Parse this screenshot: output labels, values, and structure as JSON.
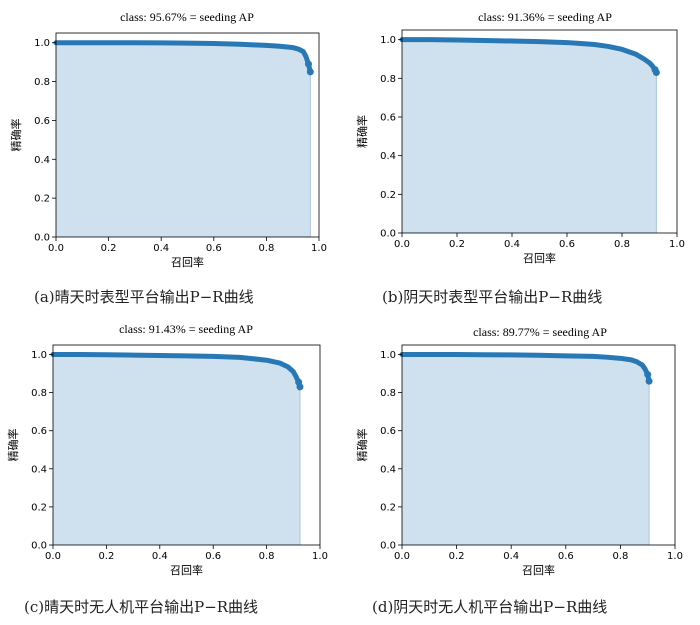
{
  "chart_data": [
    {
      "type": "area",
      "title": "class:  95.67% = seeding AP",
      "xlabel": "召回率",
      "ylabel": "精确率",
      "xlim": [
        0,
        1.0
      ],
      "ylim": [
        0,
        1.05
      ],
      "xticks": [
        "0.0",
        "0.2",
        "0.4",
        "0.6",
        "0.8",
        "1.0"
      ],
      "yticks": [
        "0.0",
        "0.2",
        "0.4",
        "0.6",
        "0.8",
        "1.0"
      ],
      "caption": "(a)晴天时表型平台输出P−R曲线",
      "series_color": "#2878b5",
      "fill_color": "#cfe0ee",
      "x": [
        0.0,
        0.1,
        0.2,
        0.3,
        0.4,
        0.5,
        0.6,
        0.7,
        0.75,
        0.8,
        0.85,
        0.88,
        0.9,
        0.92,
        0.94,
        0.95,
        0.96,
        0.967
      ],
      "y": [
        1.0,
        1.0,
        1.0,
        1.0,
        0.999,
        0.998,
        0.996,
        0.992,
        0.989,
        0.986,
        0.982,
        0.978,
        0.975,
        0.968,
        0.955,
        0.93,
        0.89,
        0.85
      ]
    },
    {
      "type": "area",
      "title": "class:  91.36% = seeding AP",
      "xlabel": "召回率",
      "ylabel": "精确率",
      "xlim": [
        0,
        1.0
      ],
      "ylim": [
        0,
        1.05
      ],
      "xticks": [
        "0.0",
        "0.2",
        "0.4",
        "0.6",
        "0.8",
        "1.0"
      ],
      "yticks": [
        "0.0",
        "0.2",
        "0.4",
        "0.6",
        "0.8",
        "1.0"
      ],
      "caption": "(b)阴天时表型平台输出P−R曲线",
      "series_color": "#2878b5",
      "fill_color": "#cfe0ee",
      "x": [
        0.0,
        0.1,
        0.2,
        0.3,
        0.4,
        0.5,
        0.6,
        0.65,
        0.7,
        0.75,
        0.8,
        0.85,
        0.88,
        0.9,
        0.91,
        0.92,
        0.925
      ],
      "y": [
        1.0,
        1.0,
        0.998,
        0.996,
        0.993,
        0.99,
        0.985,
        0.98,
        0.975,
        0.965,
        0.95,
        0.925,
        0.9,
        0.88,
        0.865,
        0.845,
        0.83
      ]
    },
    {
      "type": "area",
      "title": "class:  91.43% = seeding AP",
      "xlabel": "召回率",
      "ylabel": "精确率",
      "xlim": [
        0,
        1.0
      ],
      "ylim": [
        0,
        1.05
      ],
      "xticks": [
        "0.0",
        "0.2",
        "0.4",
        "0.6",
        "0.8",
        "1.0"
      ],
      "yticks": [
        "0.0",
        "0.2",
        "0.4",
        "0.6",
        "0.8",
        "1.0"
      ],
      "caption": "(c)晴天时无人机平台输出P−R曲线",
      "series_color": "#2878b5",
      "fill_color": "#cfe0ee",
      "x": [
        0.0,
        0.1,
        0.2,
        0.3,
        0.4,
        0.5,
        0.6,
        0.7,
        0.75,
        0.8,
        0.85,
        0.88,
        0.9,
        0.91,
        0.92,
        0.925
      ],
      "y": [
        1.0,
        1.0,
        0.999,
        0.997,
        0.995,
        0.993,
        0.99,
        0.985,
        0.978,
        0.97,
        0.955,
        0.935,
        0.91,
        0.885,
        0.855,
        0.83
      ]
    },
    {
      "type": "area",
      "title": "class:  89.77% = seeding AP",
      "xlabel": "召回率",
      "ylabel": "精确率",
      "xlim": [
        0,
        1.0
      ],
      "ylim": [
        0,
        1.05
      ],
      "xticks": [
        "0.0",
        "0.2",
        "0.4",
        "0.6",
        "0.8",
        "1.0"
      ],
      "yticks": [
        "0.0",
        "0.2",
        "0.4",
        "0.6",
        "0.8",
        "1.0"
      ],
      "caption": "(d)阴天时无人机平台输出P−R曲线",
      "series_color": "#2878b5",
      "fill_color": "#cfe0ee",
      "x": [
        0.0,
        0.1,
        0.2,
        0.3,
        0.4,
        0.5,
        0.6,
        0.7,
        0.75,
        0.8,
        0.84,
        0.86,
        0.88,
        0.89,
        0.9,
        0.905
      ],
      "y": [
        1.0,
        1.0,
        1.0,
        0.999,
        0.998,
        0.996,
        0.993,
        0.99,
        0.986,
        0.98,
        0.972,
        0.962,
        0.945,
        0.925,
        0.895,
        0.86
      ]
    }
  ]
}
